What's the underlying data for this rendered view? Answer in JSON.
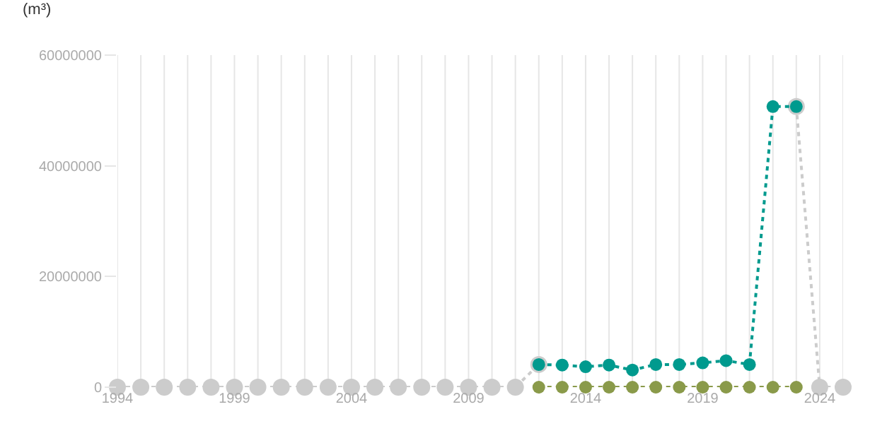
{
  "chart_data": {
    "type": "line",
    "ylabel": "(m³)",
    "x": [
      1994,
      1995,
      1996,
      1997,
      1998,
      1999,
      2000,
      2001,
      2002,
      2003,
      2004,
      2005,
      2006,
      2007,
      2008,
      2009,
      2010,
      2011,
      2012,
      2013,
      2014,
      2015,
      2016,
      2017,
      2018,
      2019,
      2020,
      2021,
      2022,
      2023,
      2024,
      2025
    ],
    "series": [
      {
        "color": "#cccccc",
        "values": [
          0,
          0,
          0,
          0,
          0,
          0,
          0,
          0,
          0,
          0,
          0,
          0,
          0,
          0,
          0,
          0,
          0,
          0,
          4100000,
          null,
          null,
          null,
          null,
          null,
          null,
          null,
          null,
          null,
          null,
          50700000,
          0,
          0
        ]
      },
      {
        "color": "#8a9a4a",
        "values": [
          null,
          null,
          null,
          null,
          null,
          null,
          null,
          null,
          null,
          null,
          null,
          null,
          null,
          null,
          null,
          null,
          null,
          null,
          0,
          0,
          0,
          0,
          0,
          0,
          0,
          0,
          0,
          0,
          0,
          0,
          null,
          null
        ]
      },
      {
        "color": "#009a8e",
        "values": [
          null,
          null,
          null,
          null,
          null,
          null,
          null,
          null,
          null,
          null,
          null,
          null,
          null,
          null,
          null,
          null,
          null,
          null,
          4100000,
          4000000,
          3700000,
          4000000,
          3100000,
          4100000,
          4100000,
          4400000,
          4800000,
          4100000,
          50700000,
          50700000,
          null,
          null
        ]
      }
    ],
    "xticks": [
      1994,
      {
        "value": 1995,
        "label": null
      },
      {
        "value": 1996,
        "label": null
      },
      {
        "value": 1997,
        "label": null
      },
      {
        "value": 1998,
        "label": null
      },
      1999,
      {
        "value": 2000,
        "label": null
      },
      {
        "value": 2001,
        "label": null
      },
      {
        "value": 2002,
        "label": null
      },
      {
        "value": 2003,
        "label": null
      },
      2004,
      {
        "value": 2005,
        "label": null
      },
      {
        "value": 2006,
        "label": null
      },
      {
        "value": 2007,
        "label": null
      },
      {
        "value": 2008,
        "label": null
      },
      2009,
      {
        "value": 2010,
        "label": null
      },
      {
        "value": 2011,
        "label": null
      },
      {
        "value": 2012,
        "label": null
      },
      {
        "value": 2013,
        "label": null
      },
      2014,
      {
        "value": 2015,
        "label": null
      },
      {
        "value": 2016,
        "label": null
      },
      {
        "value": 2017,
        "label": null
      },
      {
        "value": 2018,
        "label": null
      },
      2019,
      {
        "value": 2020,
        "label": null
      },
      {
        "value": 2021,
        "label": null
      },
      {
        "value": 2022,
        "label": null
      },
      {
        "value": 2023,
        "label": null
      },
      2024,
      {
        "value": 2025,
        "label": null
      }
    ],
    "xlim": [
      1994,
      2025
    ],
    "ylim": [
      0,
      60000000
    ],
    "yticks": [
      0,
      20000000,
      40000000,
      60000000
    ],
    "grid": "x",
    "marker": "circle",
    "line_style": "dotted",
    "legend": false
  }
}
